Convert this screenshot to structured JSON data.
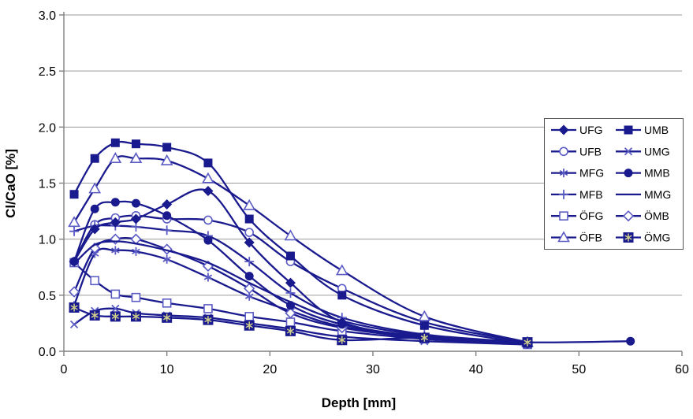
{
  "chart_data": {
    "type": "line",
    "title": "",
    "xlabel": "Depth [mm]",
    "ylabel": "Cl/CaO [%]",
    "xlim": [
      0,
      60
    ],
    "ylim": [
      0.0,
      3.0
    ],
    "xticks": [
      0,
      10,
      20,
      30,
      40,
      50,
      60
    ],
    "xtick_labels": [
      "0",
      "10",
      "20",
      "30",
      "40",
      "50",
      "60"
    ],
    "yticks": [
      0.0,
      0.5,
      1.0,
      1.5,
      2.0,
      2.5,
      3.0
    ],
    "ytick_labels": [
      "0.0",
      "0.5",
      "1.0",
      "1.5",
      "2.0",
      "2.5",
      "3.0"
    ],
    "grid": "horizontal-only",
    "legend_position": "inside-right-box",
    "colors": {
      "line_dark": "#1a1a8f",
      "marker_light": "#5b5bc4",
      "star_inside": "#cfcf8a",
      "gridline": "#9a9a9a",
      "axis": "#808080",
      "text": "#000000",
      "background": "#ffffff"
    },
    "legend_order": [
      "UFG",
      "UMB",
      "UFB",
      "UMG",
      "MFG",
      "MMB",
      "MFB",
      "MMG",
      "ÖFG",
      "ÖMB",
      "ÖFB",
      "ÖMG"
    ],
    "series": [
      {
        "name": "UFG",
        "marker": "diamond-filled",
        "tone": "dark",
        "x": [
          1,
          3,
          5,
          7,
          10,
          14,
          18,
          22,
          27,
          35,
          45
        ],
        "y": [
          0.8,
          1.09,
          1.15,
          1.18,
          1.31,
          1.43,
          0.97,
          0.61,
          0.26,
          0.13,
          0.07
        ]
      },
      {
        "name": "UMB",
        "marker": "square-filled",
        "tone": "dark",
        "x": [
          1,
          3,
          5,
          7,
          10,
          14,
          18,
          22,
          27,
          35,
          45
        ],
        "y": [
          1.4,
          1.72,
          1.86,
          1.85,
          1.82,
          1.68,
          1.18,
          0.85,
          0.5,
          0.23,
          0.07
        ]
      },
      {
        "name": "UFB",
        "marker": "circle-open",
        "tone": "light",
        "x": [
          1,
          3,
          5,
          7,
          10,
          14,
          18,
          22,
          27,
          35,
          45
        ],
        "y": [
          0.8,
          1.13,
          1.19,
          1.21,
          1.18,
          1.17,
          1.06,
          0.8,
          0.56,
          0.26,
          0.08
        ]
      },
      {
        "name": "UMG",
        "marker": "x",
        "tone": "light",
        "x": [
          1,
          3,
          5,
          7,
          10,
          14,
          18,
          22,
          27,
          35,
          45
        ],
        "y": [
          0.24,
          0.36,
          0.38,
          0.34,
          0.32,
          0.3,
          0.25,
          0.2,
          0.13,
          0.09,
          0.06
        ]
      },
      {
        "name": "MFG",
        "marker": "asterisk",
        "tone": "light",
        "x": [
          1,
          3,
          5,
          7,
          10,
          14,
          18,
          22,
          27,
          35,
          45
        ],
        "y": [
          0.41,
          0.87,
          0.9,
          0.89,
          0.82,
          0.66,
          0.49,
          0.36,
          0.22,
          0.12,
          0.07
        ]
      },
      {
        "name": "MMB",
        "marker": "circle-filled",
        "tone": "dark",
        "x": [
          1,
          3,
          5,
          7,
          10,
          14,
          18,
          22,
          27,
          35,
          45,
          55
        ],
        "y": [
          0.8,
          1.27,
          1.33,
          1.32,
          1.21,
          0.99,
          0.67,
          0.41,
          0.24,
          0.12,
          0.08,
          0.09
        ]
      },
      {
        "name": "MFB",
        "marker": "plus",
        "tone": "light",
        "x": [
          1,
          3,
          5,
          7,
          10,
          14,
          18,
          22,
          27,
          35,
          45
        ],
        "y": [
          1.07,
          1.12,
          1.12,
          1.11,
          1.08,
          1.03,
          0.8,
          0.52,
          0.3,
          0.15,
          0.08
        ]
      },
      {
        "name": "MMG",
        "marker": "none",
        "tone": "dark",
        "x": [
          1,
          3,
          5,
          7,
          10,
          14,
          18,
          22,
          27,
          35,
          45
        ],
        "y": [
          0.78,
          0.95,
          0.98,
          0.96,
          0.9,
          0.79,
          0.61,
          0.44,
          0.27,
          0.14,
          0.08
        ]
      },
      {
        "name": "ÖFG",
        "marker": "square-open",
        "tone": "light",
        "x": [
          1,
          3,
          5,
          7,
          10,
          14,
          18,
          22,
          27,
          35,
          45
        ],
        "y": [
          0.79,
          0.63,
          0.51,
          0.48,
          0.43,
          0.38,
          0.31,
          0.26,
          0.18,
          0.11,
          0.06
        ]
      },
      {
        "name": "ÖMB",
        "marker": "diamond-open",
        "tone": "light",
        "x": [
          1,
          3,
          5,
          7,
          10,
          14,
          18,
          22,
          27,
          35,
          45
        ],
        "y": [
          0.53,
          0.92,
          1.0,
          1.0,
          0.91,
          0.76,
          0.56,
          0.34,
          0.21,
          0.12,
          0.07
        ]
      },
      {
        "name": "ÖFB",
        "marker": "triangle-open",
        "tone": "light",
        "x": [
          1,
          3,
          5,
          7,
          10,
          14,
          18,
          22,
          27,
          35,
          45
        ],
        "y": [
          1.15,
          1.45,
          1.72,
          1.72,
          1.7,
          1.54,
          1.3,
          1.03,
          0.72,
          0.31,
          0.08
        ]
      },
      {
        "name": "ÖMG",
        "marker": "square-filled-asterisk",
        "tone": "dark",
        "x": [
          1,
          3,
          5,
          7,
          10,
          14,
          18,
          22,
          27,
          35,
          45
        ],
        "y": [
          0.39,
          0.32,
          0.31,
          0.31,
          0.3,
          0.28,
          0.23,
          0.18,
          0.1,
          0.12,
          0.08
        ]
      }
    ]
  }
}
